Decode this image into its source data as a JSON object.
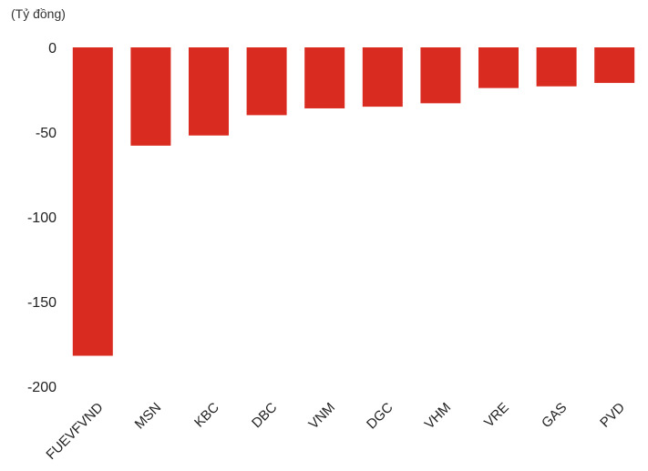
{
  "chart_data": {
    "type": "bar",
    "unit_label": "(Tỷ đồng)",
    "categories": [
      "FUEVFVND",
      "MSN",
      "KBC",
      "DBC",
      "VNM",
      "DGC",
      "VHM",
      "VRE",
      "GAS",
      "PVD"
    ],
    "values": [
      -182,
      -58,
      -52,
      -40,
      -36,
      -35,
      -33,
      -24,
      -23,
      -21
    ],
    "ylim": [
      -200,
      0
    ],
    "yticks": [
      0,
      -50,
      -100,
      -150,
      -200
    ],
    "ytick_labels": [
      "0",
      "-50",
      "-100",
      "-150",
      "-200"
    ],
    "title": "",
    "xlabel": "",
    "ylabel": "",
    "grid": false,
    "bar_color": "#d92b20"
  }
}
